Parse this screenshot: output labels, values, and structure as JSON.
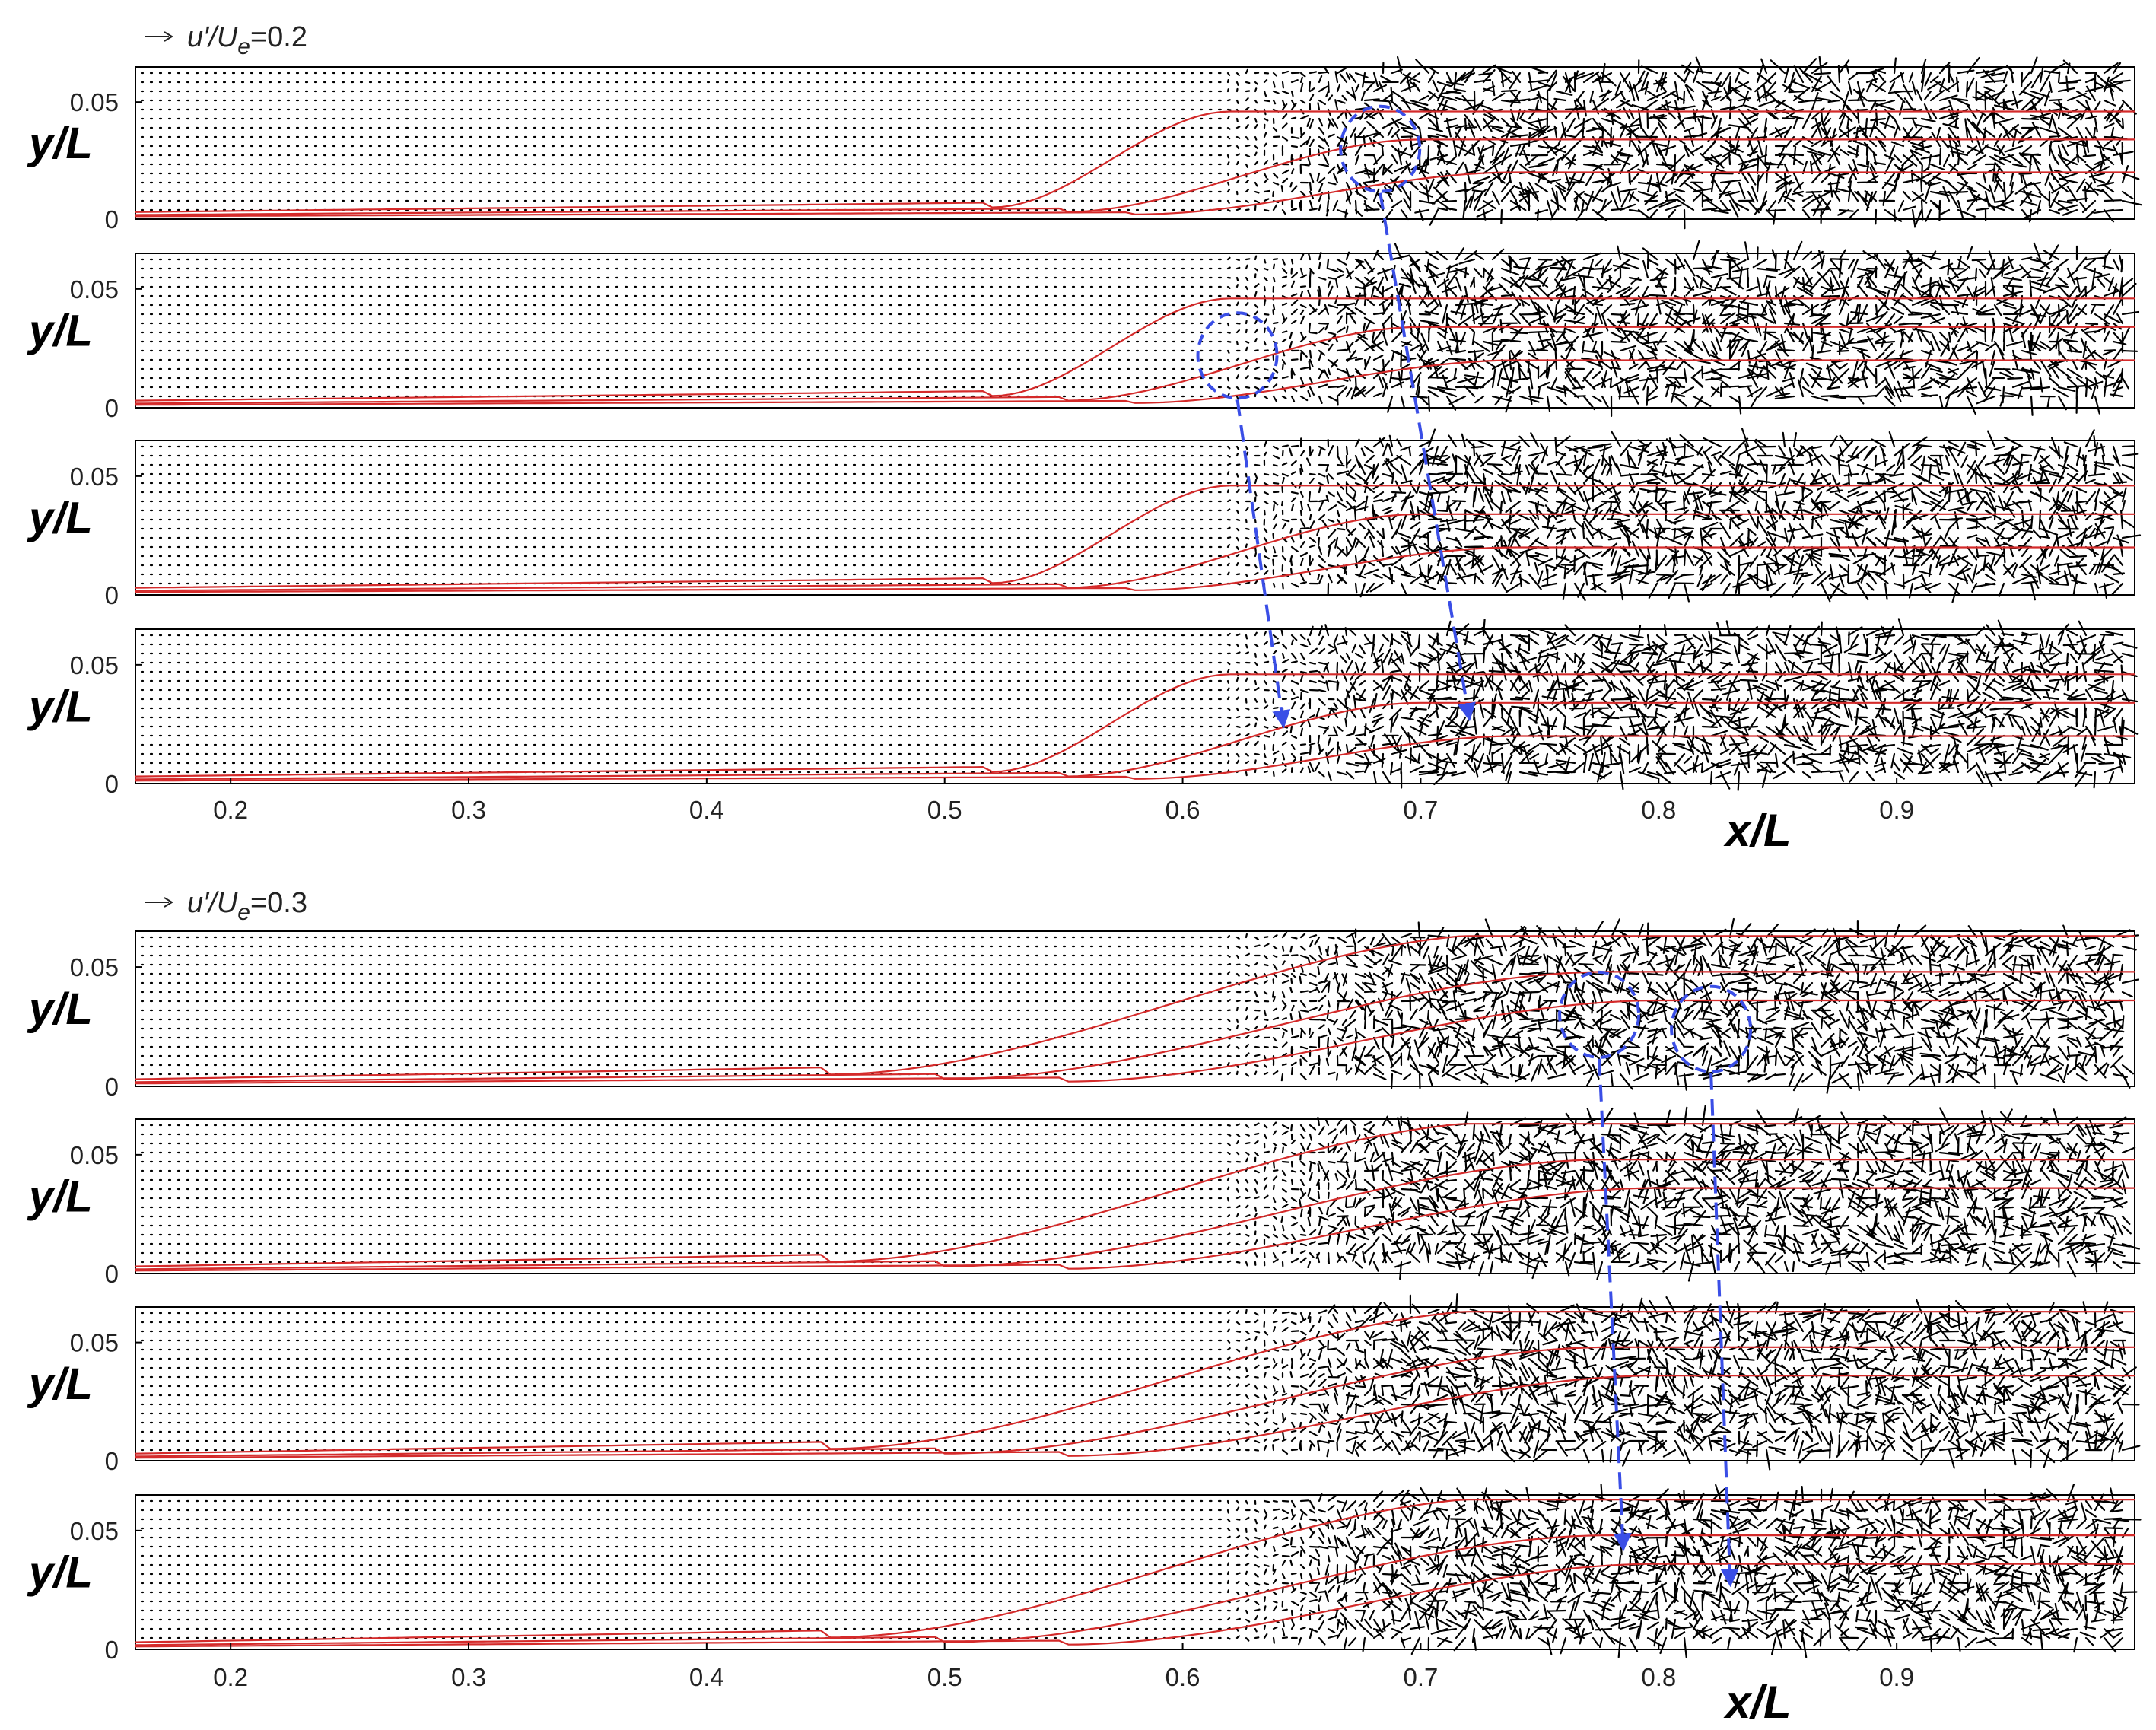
{
  "chart_data": [
    {
      "type": "quiver",
      "reference_vector_label": {
        "prefix": "u′/U",
        "sub": "e",
        "suffix": "=0.2"
      },
      "xlabel": "x/L",
      "ylabel": "y/L",
      "xlim": [
        0.16,
        1.0
      ],
      "ylim": [
        0,
        0.065
      ],
      "xticks": [
        "0.2",
        "0.3",
        "0.4",
        "0.5",
        "0.6",
        "0.7",
        "0.8",
        "0.9"
      ],
      "yticks": [
        "0",
        "0.05"
      ],
      "panels": [
        {
          "curves": [
            {
              "x0": 0.16,
              "y_up": 0.005,
              "x_rise": 0.52,
              "y_top": 0.046,
              "x_top": 0.62
            },
            {
              "x0": 0.16,
              "y_up": 0.003,
              "x_rise": 0.55,
              "y_top": 0.034,
              "x_top": 0.7
            },
            {
              "x0": 0.16,
              "y_up": 0.002,
              "x_rise": 0.58,
              "y_top": 0.02,
              "x_top": 0.74
            }
          ],
          "vortex_marks": [
            {
              "x": 0.683,
              "y": 0.03
            }
          ]
        },
        {
          "curves": [
            {
              "x0": 0.16,
              "y_up": 0.005,
              "x_rise": 0.52,
              "y_top": 0.046,
              "x_top": 0.62
            },
            {
              "x0": 0.16,
              "y_up": 0.003,
              "x_rise": 0.55,
              "y_top": 0.034,
              "x_top": 0.7
            },
            {
              "x0": 0.16,
              "y_up": 0.002,
              "x_rise": 0.58,
              "y_top": 0.02,
              "x_top": 0.74
            }
          ],
          "vortex_marks": [
            {
              "x": 0.623,
              "y": 0.022
            }
          ]
        },
        {
          "curves": [
            {
              "x0": 0.16,
              "y_up": 0.005,
              "x_rise": 0.52,
              "y_top": 0.046,
              "x_top": 0.62
            },
            {
              "x0": 0.16,
              "y_up": 0.003,
              "x_rise": 0.55,
              "y_top": 0.034,
              "x_top": 0.7
            },
            {
              "x0": 0.16,
              "y_up": 0.002,
              "x_rise": 0.58,
              "y_top": 0.02,
              "x_top": 0.74
            }
          ],
          "vortex_marks": []
        },
        {
          "curves": [
            {
              "x0": 0.16,
              "y_up": 0.005,
              "x_rise": 0.52,
              "y_top": 0.046,
              "x_top": 0.62
            },
            {
              "x0": 0.16,
              "y_up": 0.003,
              "x_rise": 0.55,
              "y_top": 0.034,
              "x_top": 0.7
            },
            {
              "x0": 0.16,
              "y_up": 0.002,
              "x_rise": 0.58,
              "y_top": 0.02,
              "x_top": 0.74
            }
          ],
          "vortex_marks": []
        }
      ],
      "vortex_tracks": [
        {
          "from": {
            "panel": 0,
            "x": 0.683,
            "y": 0.03
          },
          "to": {
            "panel": 3,
            "x": 0.72,
            "y": 0.03
          }
        },
        {
          "from": {
            "panel": 1,
            "x": 0.623,
            "y": 0.022
          },
          "to": {
            "panel": 3,
            "x": 0.642,
            "y": 0.027
          }
        }
      ]
    },
    {
      "type": "quiver",
      "reference_vector_label": {
        "prefix": "u′/U",
        "sub": "e",
        "suffix": "=0.3"
      },
      "xlabel": "x/L",
      "ylabel": "y/L",
      "xlim": [
        0.16,
        1.0
      ],
      "ylim": [
        0,
        0.065
      ],
      "xticks": [
        "0.2",
        "0.3",
        "0.4",
        "0.5",
        "0.6",
        "0.7",
        "0.8",
        "0.9"
      ],
      "yticks": [
        "0",
        "0.05"
      ],
      "panels": [
        {
          "curves": [
            {
              "x0": 0.16,
              "y_up": 0.005,
              "x_rise": 0.45,
              "y_top": 0.064,
              "x_top": 0.74
            },
            {
              "x0": 0.16,
              "y_up": 0.003,
              "x_rise": 0.5,
              "y_top": 0.048,
              "x_top": 0.78
            },
            {
              "x0": 0.16,
              "y_up": 0.002,
              "x_rise": 0.55,
              "y_top": 0.036,
              "x_top": 0.8
            }
          ],
          "vortex_marks": [
            {
              "x": 0.775,
              "y": 0.03
            },
            {
              "x": 0.822,
              "y": 0.024
            }
          ]
        },
        {
          "curves": [
            {
              "x0": 0.16,
              "y_up": 0.005,
              "x_rise": 0.45,
              "y_top": 0.064,
              "x_top": 0.74
            },
            {
              "x0": 0.16,
              "y_up": 0.003,
              "x_rise": 0.5,
              "y_top": 0.048,
              "x_top": 0.78
            },
            {
              "x0": 0.16,
              "y_up": 0.002,
              "x_rise": 0.55,
              "y_top": 0.036,
              "x_top": 0.8
            }
          ],
          "vortex_marks": []
        },
        {
          "curves": [
            {
              "x0": 0.16,
              "y_up": 0.005,
              "x_rise": 0.45,
              "y_top": 0.064,
              "x_top": 0.74
            },
            {
              "x0": 0.16,
              "y_up": 0.003,
              "x_rise": 0.5,
              "y_top": 0.048,
              "x_top": 0.78
            },
            {
              "x0": 0.16,
              "y_up": 0.002,
              "x_rise": 0.55,
              "y_top": 0.036,
              "x_top": 0.8
            }
          ],
          "vortex_marks": []
        },
        {
          "curves": [
            {
              "x0": 0.16,
              "y_up": 0.005,
              "x_rise": 0.45,
              "y_top": 0.064,
              "x_top": 0.74
            },
            {
              "x0": 0.16,
              "y_up": 0.003,
              "x_rise": 0.5,
              "y_top": 0.048,
              "x_top": 0.78
            },
            {
              "x0": 0.16,
              "y_up": 0.002,
              "x_rise": 0.55,
              "y_top": 0.036,
              "x_top": 0.8
            }
          ],
          "vortex_marks": []
        }
      ],
      "vortex_tracks": [
        {
          "from": {
            "panel": 0,
            "x": 0.775,
            "y": 0.03
          },
          "to": {
            "panel": 3,
            "x": 0.785,
            "y": 0.045
          }
        },
        {
          "from": {
            "panel": 0,
            "x": 0.822,
            "y": 0.024
          },
          "to": {
            "panel": 3,
            "x": 0.83,
            "y": 0.03
          }
        }
      ]
    }
  ],
  "colors": {
    "curve": "#d42a2a",
    "vortex": "#3a4ee6",
    "arrow": "#000000",
    "axis": "#000000"
  }
}
